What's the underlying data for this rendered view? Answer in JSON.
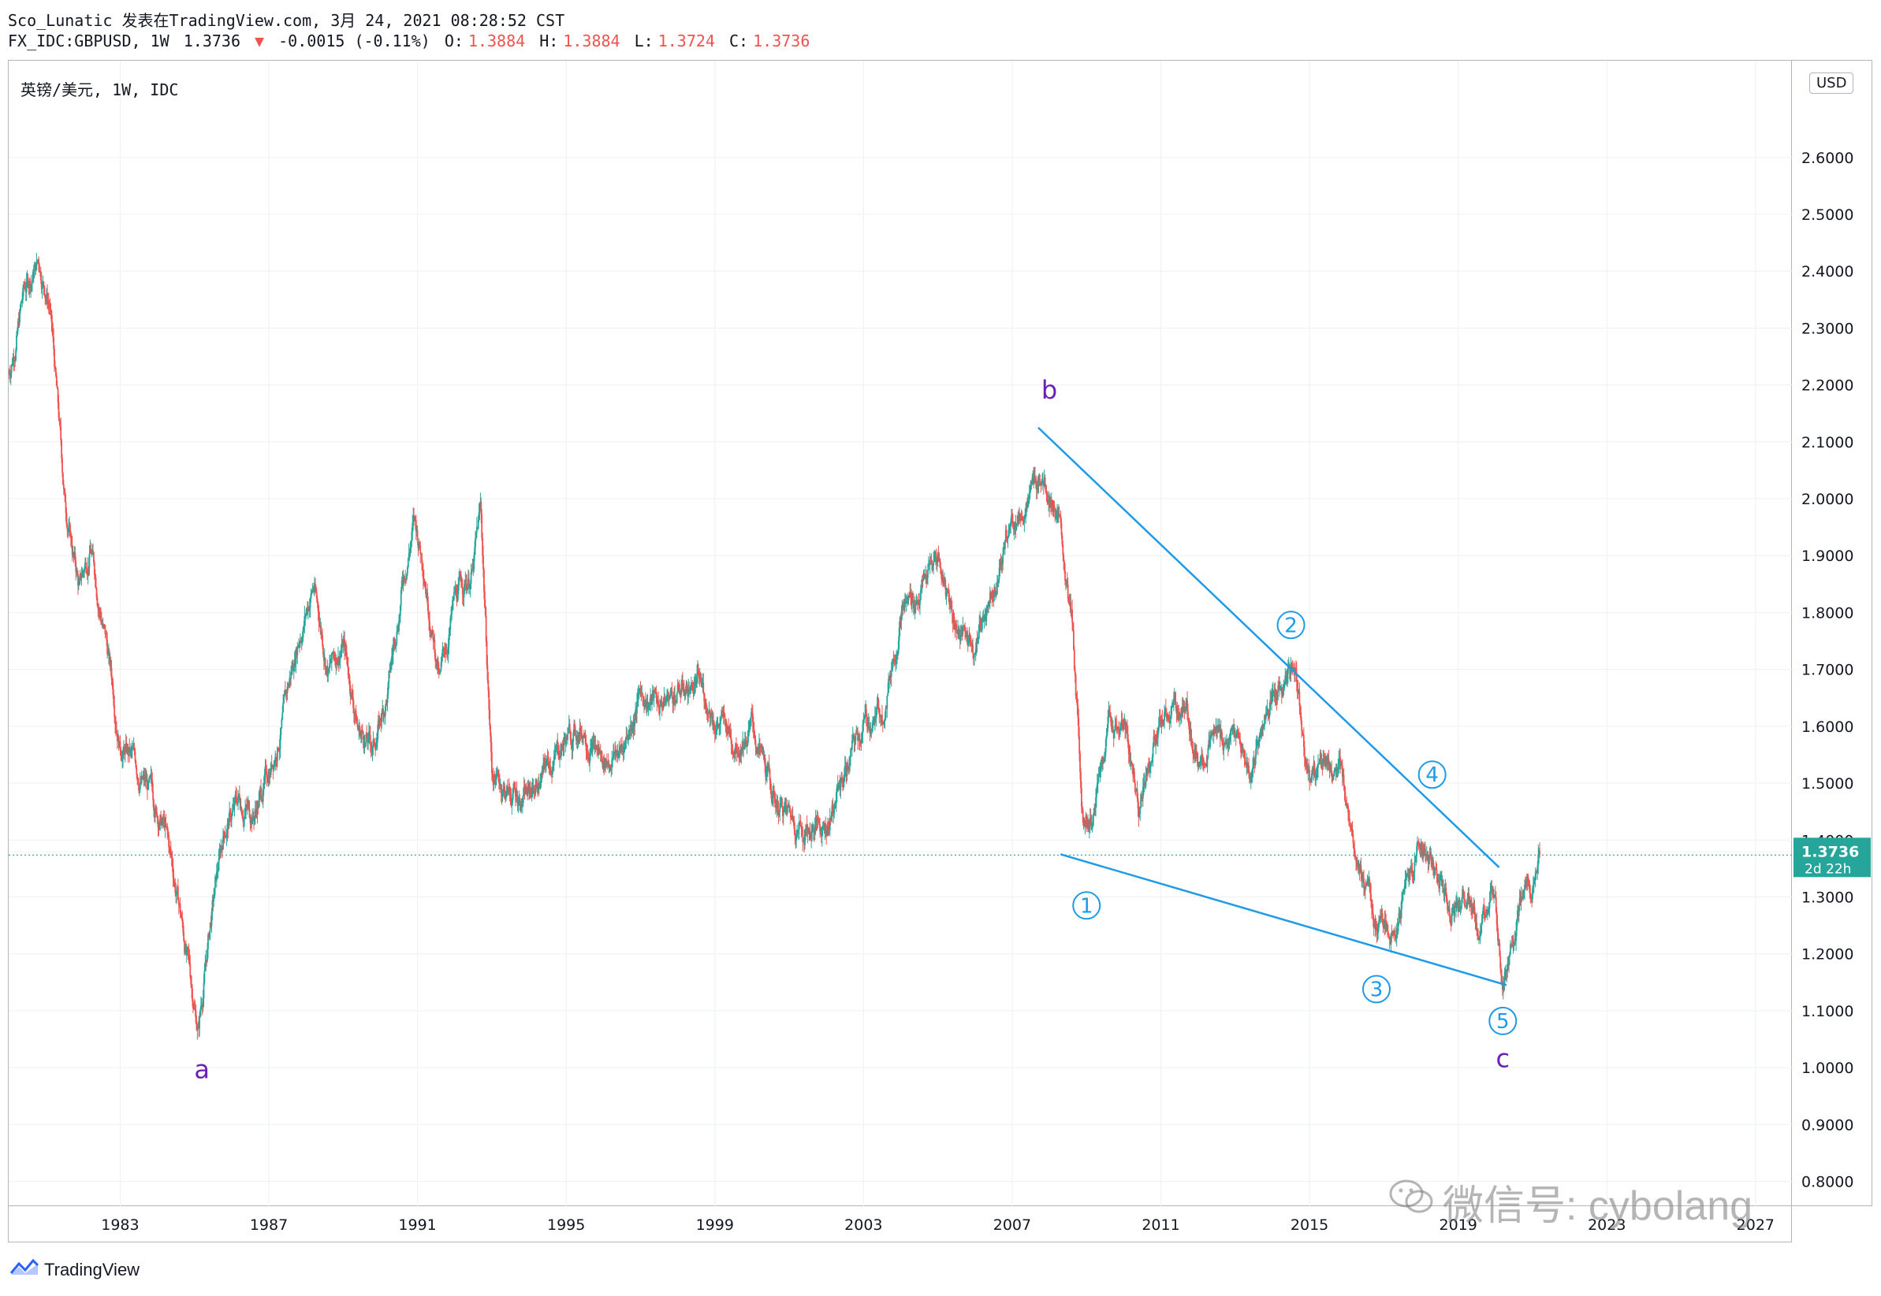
{
  "header": {
    "line1": "Sco_Lunatic 发表在TradingView.com, 3月 24, 2021 08:28:52 CST",
    "symbol": "FX_IDC:GBPUSD, 1W",
    "last": "1.3736",
    "change": "-0.0015 (-0.11%)",
    "o_label": "O:",
    "o_val": "1.3884",
    "h_label": "H:",
    "h_val": "1.3884",
    "l_label": "L:",
    "l_val": "1.3724",
    "c_label": "C:",
    "c_val": "1.3736"
  },
  "chart_label": "英镑/美元, 1W, IDC",
  "currency_badge": "USD",
  "price_tag": {
    "price": "1.3736",
    "countdown": "2d 22h"
  },
  "footer_brand": "TradingView",
  "watermark": "微信号: cybolang",
  "colors": {
    "up": "#26a69a",
    "down": "#ef5350",
    "trend": "#1e9be8",
    "wave_a": "#6a1fb5",
    "grid": "#eef0f3"
  },
  "chart_data": {
    "type": "candlestick",
    "title": "英镑/美元, 1W, IDC",
    "x_range": [
      1980.0,
      2028.0
    ],
    "y_range": [
      0.755,
      2.77
    ],
    "y_ticks": [
      "0.8000",
      "0.9000",
      "1.0000",
      "1.1000",
      "1.2000",
      "1.3000",
      "1.4000",
      "1.5000",
      "1.6000",
      "1.7000",
      "1.8000",
      "1.9000",
      "2.0000",
      "2.1000",
      "2.2000",
      "2.3000",
      "2.4000",
      "2.5000",
      "2.6000"
    ],
    "x_ticks": [
      "1983",
      "1987",
      "1991",
      "1995",
      "1999",
      "2003",
      "2007",
      "2011",
      "2015",
      "2019",
      "2023",
      "2027"
    ],
    "last_price": 1.3736,
    "price_path": [
      [
        1980.0,
        2.22
      ],
      [
        1980.4,
        2.36
      ],
      [
        1980.8,
        2.42
      ],
      [
        1981.1,
        2.35
      ],
      [
        1981.5,
        2.0
      ],
      [
        1981.9,
        1.84
      ],
      [
        1982.2,
        1.92
      ],
      [
        1982.6,
        1.76
      ],
      [
        1983.0,
        1.58
      ],
      [
        1983.4,
        1.53
      ],
      [
        1983.8,
        1.48
      ],
      [
        1984.2,
        1.42
      ],
      [
        1984.6,
        1.28
      ],
      [
        1984.9,
        1.15
      ],
      [
        1985.1,
        1.07
      ],
      [
        1985.4,
        1.24
      ],
      [
        1985.8,
        1.42
      ],
      [
        1986.2,
        1.47
      ],
      [
        1986.6,
        1.45
      ],
      [
        1987.0,
        1.52
      ],
      [
        1987.4,
        1.62
      ],
      [
        1987.8,
        1.76
      ],
      [
        1988.2,
        1.85
      ],
      [
        1988.6,
        1.7
      ],
      [
        1989.0,
        1.75
      ],
      [
        1989.4,
        1.6
      ],
      [
        1989.8,
        1.56
      ],
      [
        1990.2,
        1.66
      ],
      [
        1990.6,
        1.86
      ],
      [
        1990.9,
        1.96
      ],
      [
        1991.2,
        1.88
      ],
      [
        1991.6,
        1.68
      ],
      [
        1992.0,
        1.82
      ],
      [
        1992.5,
        1.88
      ],
      [
        1992.7,
        1.98
      ],
      [
        1993.0,
        1.52
      ],
      [
        1993.5,
        1.48
      ],
      [
        1994.0,
        1.48
      ],
      [
        1994.5,
        1.53
      ],
      [
        1995.0,
        1.58
      ],
      [
        1995.5,
        1.6
      ],
      [
        1996.0,
        1.54
      ],
      [
        1996.5,
        1.56
      ],
      [
        1997.0,
        1.66
      ],
      [
        1997.5,
        1.64
      ],
      [
        1998.0,
        1.66
      ],
      [
        1998.5,
        1.68
      ],
      [
        1999.0,
        1.62
      ],
      [
        1999.5,
        1.58
      ],
      [
        2000.0,
        1.6
      ],
      [
        2000.5,
        1.48
      ],
      [
        2001.0,
        1.44
      ],
      [
        2001.5,
        1.42
      ],
      [
        2002.0,
        1.43
      ],
      [
        2002.5,
        1.52
      ],
      [
        2003.0,
        1.6
      ],
      [
        2003.5,
        1.63
      ],
      [
        2004.0,
        1.8
      ],
      [
        2004.5,
        1.84
      ],
      [
        2005.0,
        1.9
      ],
      [
        2005.5,
        1.78
      ],
      [
        2006.0,
        1.74
      ],
      [
        2006.5,
        1.86
      ],
      [
        2007.0,
        1.96
      ],
      [
        2007.5,
        2.0
      ],
      [
        2007.8,
        2.06
      ],
      [
        2008.2,
        1.98
      ],
      [
        2008.6,
        1.78
      ],
      [
        2008.9,
        1.45
      ],
      [
        2009.2,
        1.44
      ],
      [
        2009.6,
        1.62
      ],
      [
        2010.0,
        1.6
      ],
      [
        2010.4,
        1.47
      ],
      [
        2010.8,
        1.58
      ],
      [
        2011.2,
        1.62
      ],
      [
        2011.6,
        1.63
      ],
      [
        2012.0,
        1.56
      ],
      [
        2012.5,
        1.58
      ],
      [
        2013.0,
        1.58
      ],
      [
        2013.4,
        1.51
      ],
      [
        2013.8,
        1.62
      ],
      [
        2014.3,
        1.67
      ],
      [
        2014.6,
        1.71
      ],
      [
        2015.0,
        1.51
      ],
      [
        2015.4,
        1.55
      ],
      [
        2015.8,
        1.51
      ],
      [
        2016.2,
        1.42
      ],
      [
        2016.5,
        1.32
      ],
      [
        2016.8,
        1.23
      ],
      [
        2017.2,
        1.25
      ],
      [
        2017.6,
        1.31
      ],
      [
        2018.0,
        1.4
      ],
      [
        2018.4,
        1.34
      ],
      [
        2018.8,
        1.29
      ],
      [
        2019.2,
        1.31
      ],
      [
        2019.6,
        1.22
      ],
      [
        2019.9,
        1.31
      ],
      [
        2020.2,
        1.16
      ],
      [
        2020.5,
        1.25
      ],
      [
        2020.9,
        1.31
      ],
      [
        2021.2,
        1.38
      ]
    ],
    "trendlines": [
      {
        "name": "upper",
        "from": [
          2007.7,
          2.125
        ],
        "to": [
          2020.1,
          1.352
        ]
      },
      {
        "name": "lower",
        "from": [
          2008.3,
          1.375
        ],
        "to": [
          2020.3,
          1.145
        ]
      }
    ],
    "annotations": [
      {
        "text": "a",
        "x": 1985.2,
        "y": 0.995,
        "style": "letter"
      },
      {
        "text": "b",
        "x": 2008.0,
        "y": 2.19,
        "style": "letter"
      },
      {
        "text": "c",
        "x": 2020.2,
        "y": 1.015,
        "style": "letter"
      },
      {
        "text": "1",
        "x": 2009.0,
        "y": 1.285,
        "style": "circled"
      },
      {
        "text": "2",
        "x": 2014.5,
        "y": 1.778,
        "style": "circled"
      },
      {
        "text": "3",
        "x": 2016.8,
        "y": 1.138,
        "style": "circled"
      },
      {
        "text": "4",
        "x": 2018.3,
        "y": 1.515,
        "style": "circled"
      },
      {
        "text": "5",
        "x": 2020.2,
        "y": 1.082,
        "style": "circled"
      }
    ]
  }
}
